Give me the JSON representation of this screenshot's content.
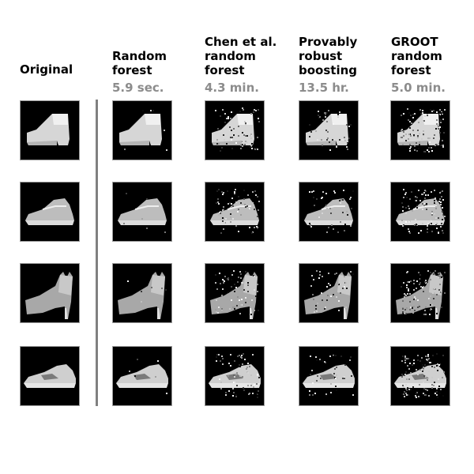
{
  "columns": [
    {
      "id": "original",
      "title": "Original",
      "time": ""
    },
    {
      "id": "random-forest",
      "title": "Random\nforest",
      "time": "5.9 sec."
    },
    {
      "id": "chen-random-forest",
      "title": "Chen et al.\nrandom\nforest",
      "time": "4.3 min."
    },
    {
      "id": "provably-robust-boosting",
      "title": "Provably\nrobust\nboosting",
      "time": "13.5 hr."
    },
    {
      "id": "groot-random-forest",
      "title": "GROOT\nrandom\nforest",
      "time": "5.0 min."
    }
  ],
  "rows": [
    {
      "item": "ankle-boot"
    },
    {
      "item": "sneaker"
    },
    {
      "item": "high-heel"
    },
    {
      "item": "low-sneaker"
    }
  ],
  "colors": {
    "time_gray": "#8c8c8c",
    "divider": "#808080",
    "image_background": "#000000"
  }
}
